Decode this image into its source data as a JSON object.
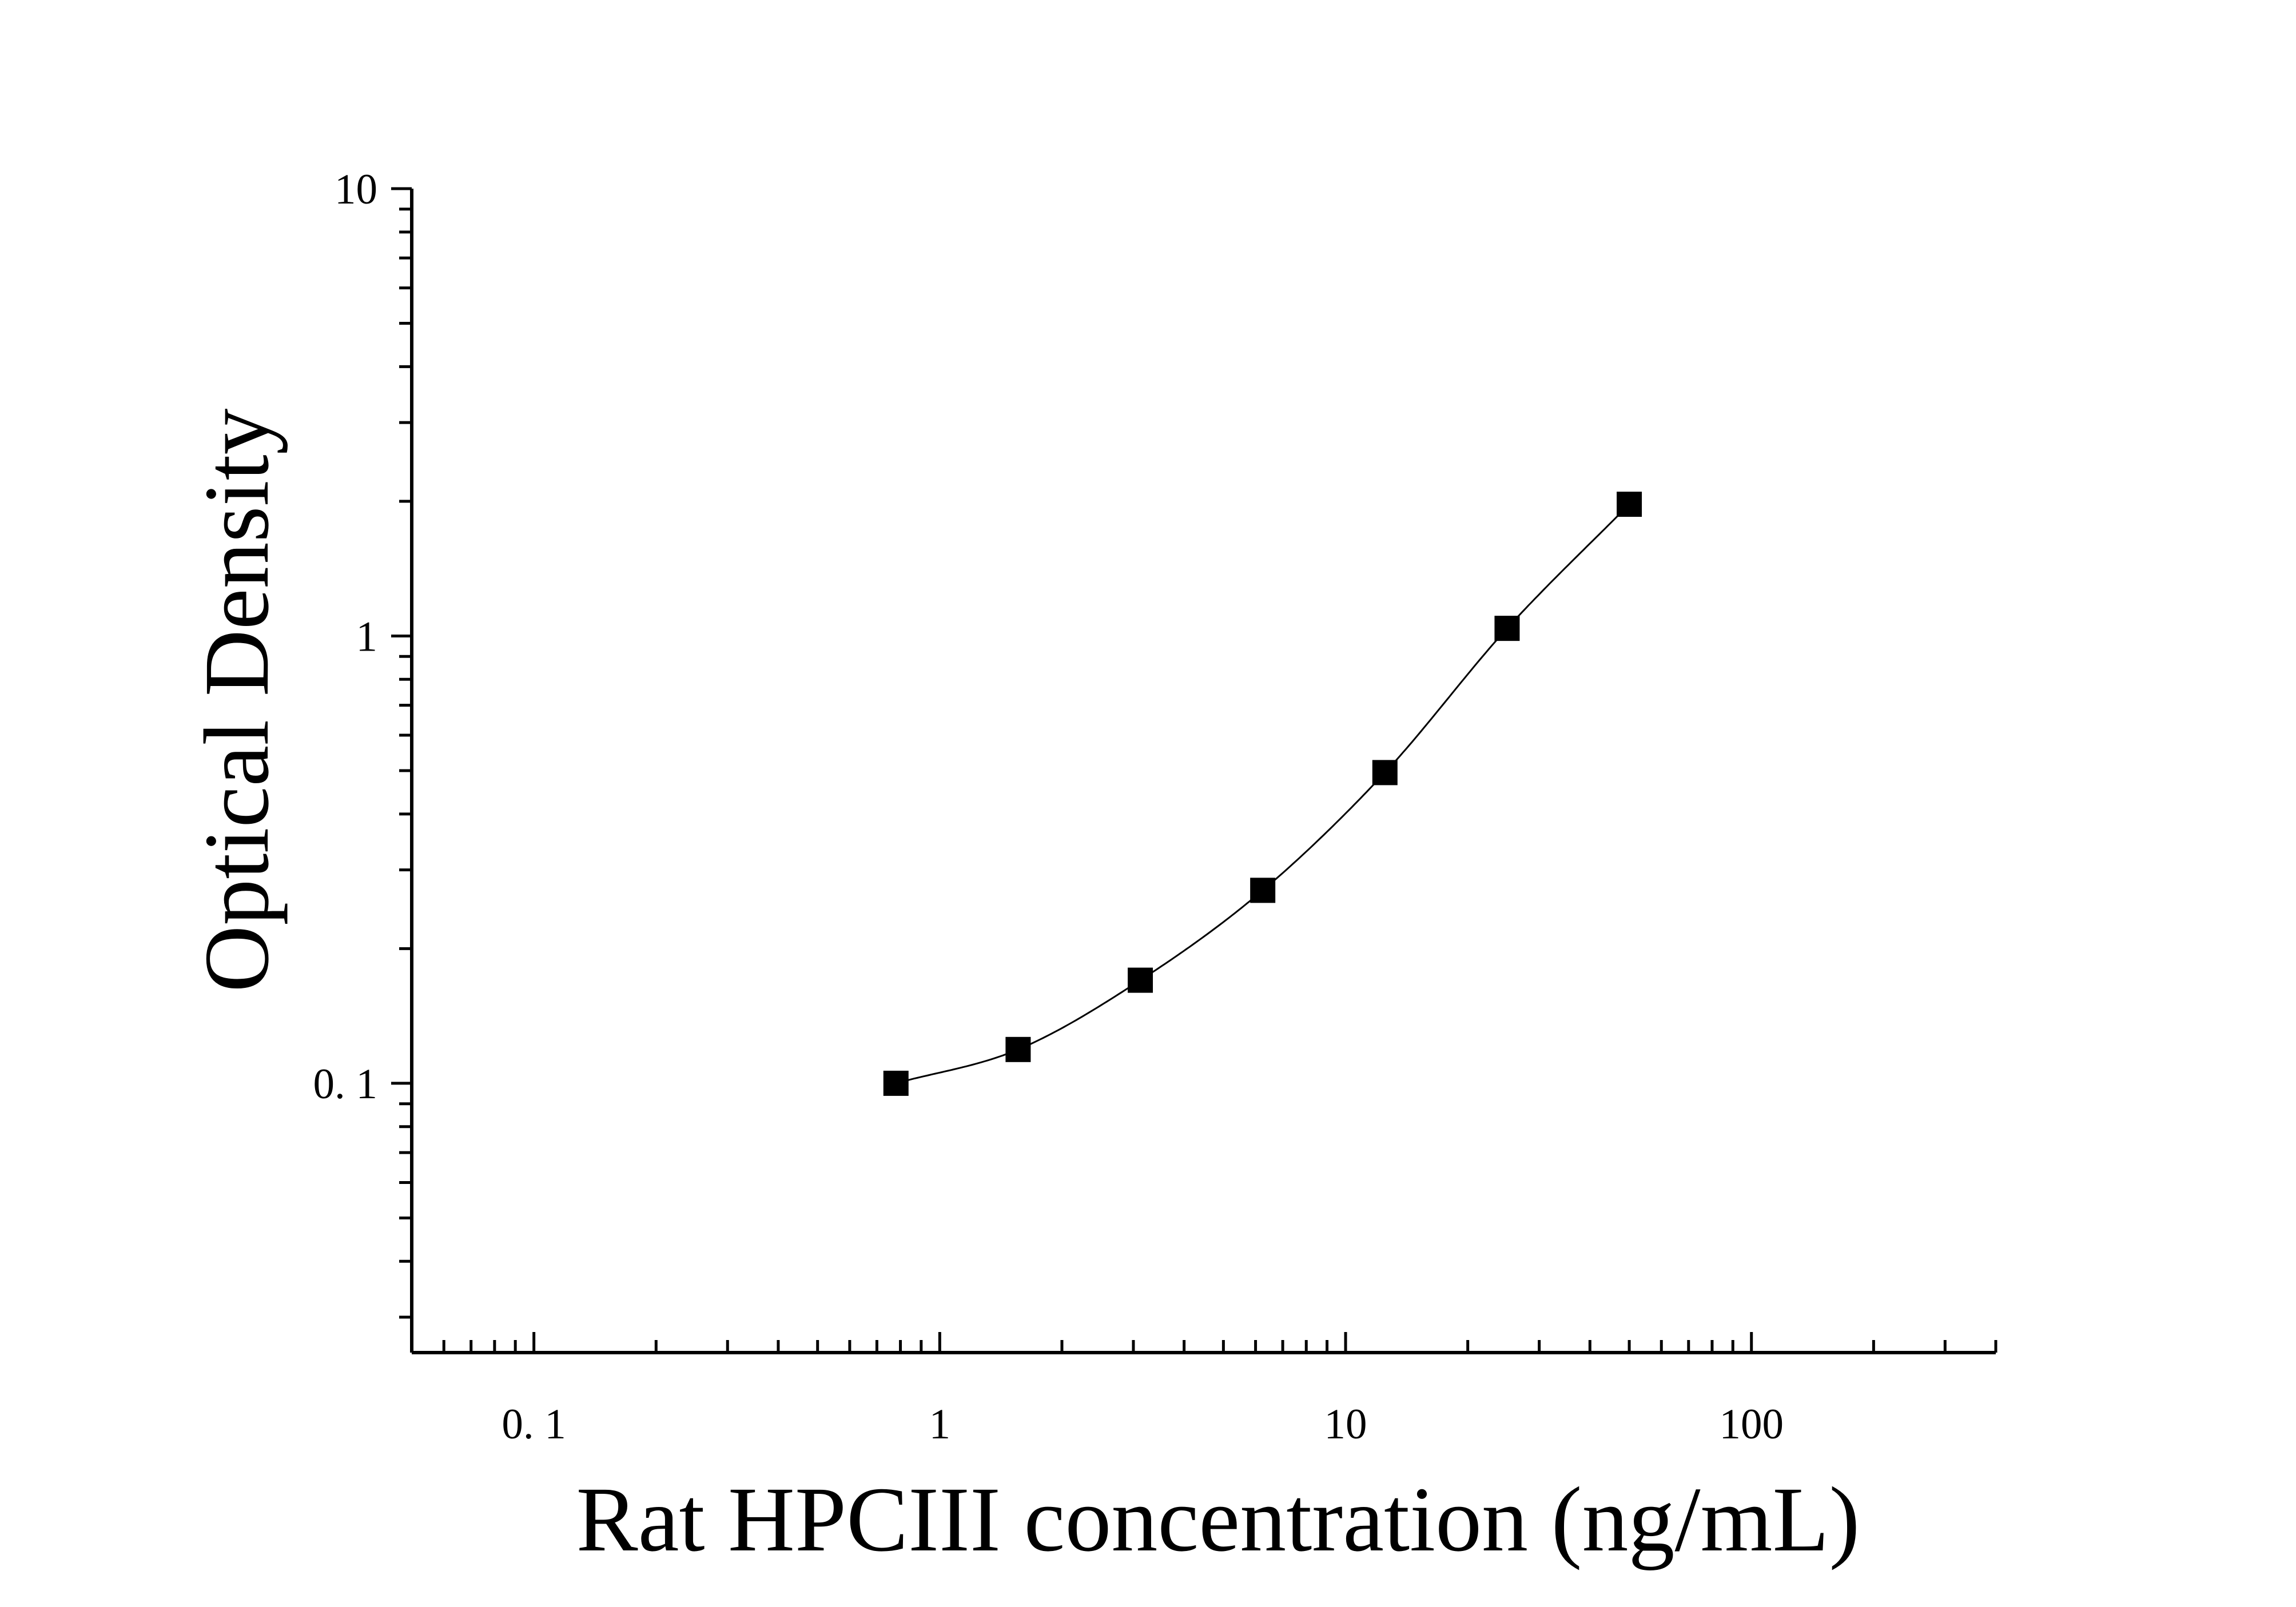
{
  "chart_data": {
    "type": "scatter",
    "title": "",
    "xlabel": "Rat HPCIII concentration (ng/mL)",
    "ylabel": "Optical Density",
    "x_scale": "log",
    "y_scale": "log",
    "xlim": [
      0.05,
      400
    ],
    "ylim": [
      0.025,
      10
    ],
    "x_ticks": [
      {
        "value": 0.1,
        "label": "0. 1"
      },
      {
        "value": 1,
        "label": "1"
      },
      {
        "value": 10,
        "label": "10"
      },
      {
        "value": 100,
        "label": "100"
      }
    ],
    "y_ticks": [
      {
        "value": 0.1,
        "label": "0. 1"
      },
      {
        "value": 1,
        "label": "1"
      },
      {
        "value": 10,
        "label": "10"
      }
    ],
    "grid": false,
    "legend": "none",
    "marker": "square",
    "has_fit_curve": true,
    "series": [
      {
        "x": [
          0.78,
          1.56,
          3.12,
          6.25,
          12.5,
          25,
          50
        ],
        "y": [
          0.1,
          0.119,
          0.17,
          0.27,
          0.495,
          1.04,
          1.97
        ]
      }
    ],
    "colors": {
      "marker": "#000000",
      "curve": "#000000",
      "axis": "#000000"
    }
  }
}
